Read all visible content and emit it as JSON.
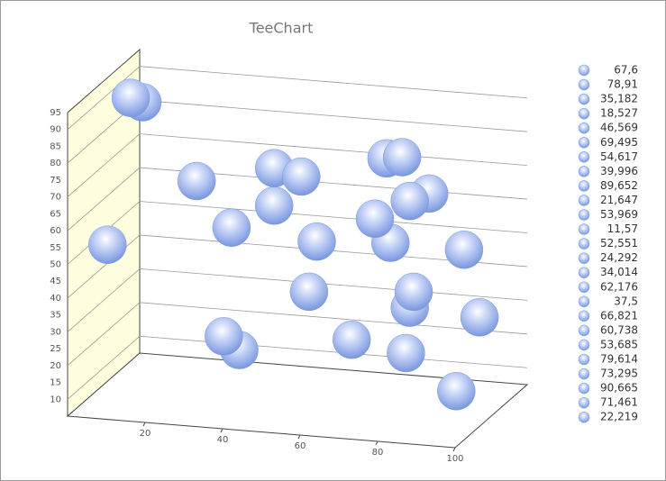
{
  "chart_data": {
    "type": "scatter",
    "title": "TeeChart",
    "x": [
      24,
      73,
      79,
      35,
      1,
      84,
      33,
      80,
      10,
      78,
      74,
      91,
      55,
      64,
      97,
      44,
      53,
      79,
      70,
      93,
      77,
      44,
      7,
      51,
      31
    ],
    "series": [
      {
        "color": "#8fa8e8",
        "values": [
          67.6,
          78.91,
          35.182,
          18.527,
          46.569,
          69.495,
          54.617,
          39.996,
          89.652,
          21.647,
          53.969,
          11.57,
          52.551,
          24.292,
          34.014,
          62.176,
          37.5,
          66.821,
          60.738,
          53.685,
          79.614,
          73.295,
          90.665,
          71.461,
          22.219
        ],
        "value_labels": [
          "67,6",
          "78,91",
          "35,182",
          "18,527",
          "46,569",
          "69,495",
          "54,617",
          "39,996",
          "89,652",
          "21,647",
          "53,969",
          "11,57",
          "52,551",
          "24,292",
          "34,014",
          "62,176",
          "37,5",
          "66,821",
          "60,738",
          "53,685",
          "79,614",
          "73,295",
          "90,665",
          "71,461",
          "22,219"
        ]
      }
    ],
    "xlim": [
      0,
      100
    ],
    "ylim": [
      5,
      95
    ],
    "xticks": [
      20,
      40,
      60,
      80,
      100
    ],
    "yticks": [
      10,
      15,
      20,
      25,
      30,
      35,
      40,
      45,
      50,
      55,
      60,
      65,
      70,
      75,
      80,
      85,
      90,
      95
    ],
    "grid": true
  }
}
